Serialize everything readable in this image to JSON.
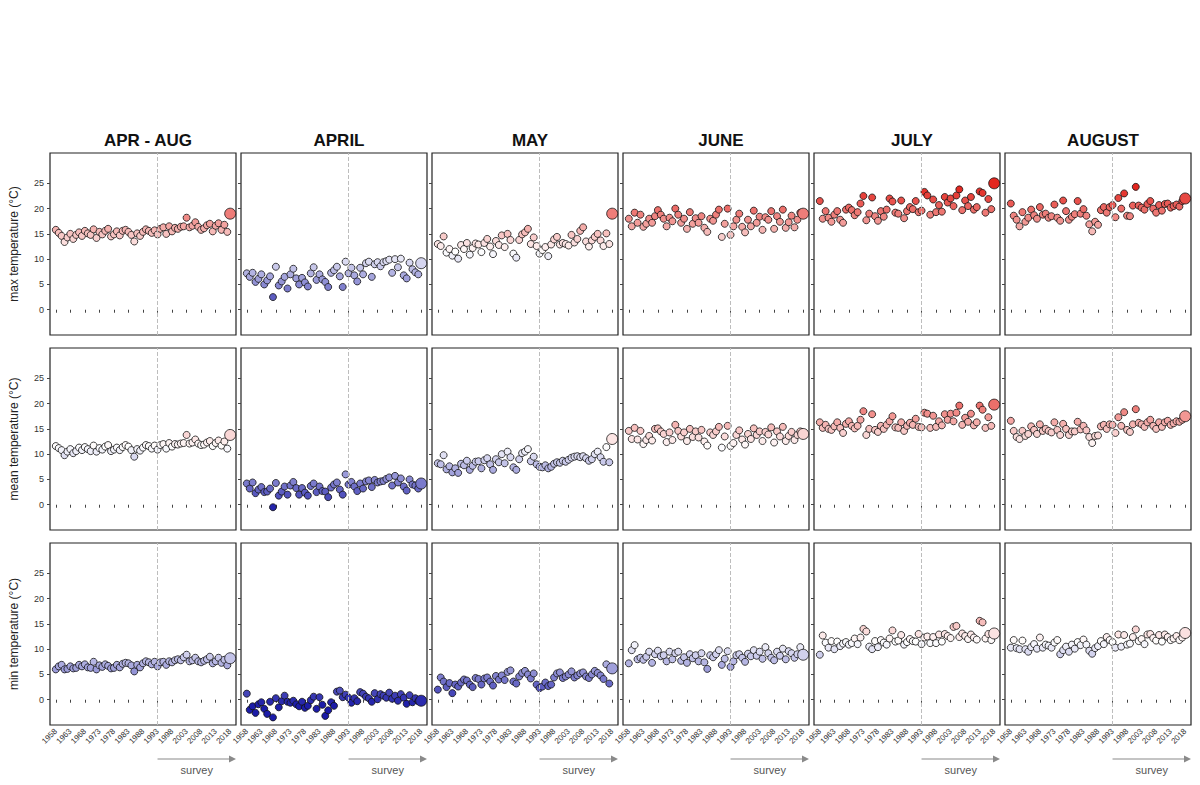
{
  "chart_data": {
    "type": "scatter",
    "marker": "circle",
    "columns": [
      "APR - AUG",
      "APRIL",
      "MAY",
      "JUNE",
      "JULY",
      "AUGUST"
    ],
    "rows": [
      "max temperature (°C)",
      "mean temperature (°C)",
      "min temperature (°C)"
    ],
    "x": [
      1958,
      1959,
      1960,
      1961,
      1962,
      1963,
      1964,
      1965,
      1966,
      1967,
      1968,
      1969,
      1970,
      1971,
      1972,
      1973,
      1974,
      1975,
      1976,
      1977,
      1978,
      1979,
      1980,
      1981,
      1982,
      1983,
      1984,
      1985,
      1986,
      1987,
      1988,
      1989,
      1990,
      1991,
      1992,
      1993,
      1994,
      1995,
      1996,
      1997,
      1998,
      1999,
      2000,
      2001,
      2002,
      2003,
      2004,
      2005,
      2006,
      2007,
      2008,
      2009,
      2010,
      2011,
      2012,
      2013,
      2014,
      2015,
      2016,
      2017,
      2018
    ],
    "xlim": [
      1956,
      2020
    ],
    "xticks": [
      1958,
      1963,
      1968,
      1973,
      1978,
      1983,
      1988,
      1993,
      1998,
      2003,
      2008,
      2013,
      2018
    ],
    "ylim": [
      -5,
      31
    ],
    "yticks": [
      0,
      5,
      10,
      15,
      20,
      25
    ],
    "survey": {
      "label": "survey",
      "start": 1993
    },
    "color_scale": {
      "range": [
        -1,
        24
      ],
      "colors": [
        "#1c1ca8",
        "#ffffff",
        "#e3261f"
      ]
    },
    "values": [
      [
        [
          15.8,
          15.2,
          14.6,
          13.4,
          14.3,
          15.0,
          14.0,
          14.8,
          15.3,
          14.6,
          15.6,
          15.1,
          14.8,
          15.9,
          14.2,
          15.4,
          14.9,
          15.6,
          16.0,
          14.5,
          14.9,
          15.5,
          14.7,
          15.6,
          15.8,
          15.4,
          14.8,
          13.5,
          15.1,
          14.6,
          15.4,
          15.9,
          15.6,
          15.2,
          15.7,
          14.9,
          16.0,
          16.3,
          15.0,
          16.5,
          15.5,
          16.2,
          16.0,
          16.4,
          16.5,
          18.2,
          16.3,
          16.6,
          17.3,
          16.4,
          15.8,
          16.1,
          16.7,
          17.0,
          15.5,
          16.6,
          17.1,
          15.8,
          16.8,
          15.4,
          19.0
        ],
        [
          7.2,
          6.5,
          7.3,
          5.5,
          6.1,
          7.0,
          5.0,
          5.8,
          6.6,
          2.5,
          8.5,
          4.8,
          5.6,
          6.5,
          4.2,
          7.0,
          8.1,
          6.2,
          5.0,
          6.3,
          5.4,
          4.6,
          7.2,
          8.4,
          5.9,
          7.0,
          6.0,
          5.5,
          4.5,
          7.3,
          7.8,
          8.5,
          6.6,
          4.5,
          9.5,
          7.2,
          8.3,
          6.8,
          5.6,
          8.3,
          7.0,
          9.2,
          9.5,
          6.5,
          9.0,
          9.4,
          8.6,
          9.4,
          9.6,
          9.9,
          7.3,
          10.0,
          8.4,
          10.1,
          6.8,
          6.2,
          9.3,
          8.0,
          7.4,
          7.0,
          9.2
        ],
        [
          13.0,
          12.6,
          14.5,
          11.3,
          12.0,
          10.7,
          11.5,
          10.1,
          12.8,
          12.0,
          13.2,
          10.9,
          12.2,
          13.1,
          12.9,
          11.4,
          13.2,
          14.0,
          12.5,
          11.0,
          13.6,
          12.8,
          14.7,
          12.4,
          15.0,
          13.8,
          11.1,
          10.3,
          13.8,
          14.9,
          15.3,
          16.0,
          13.0,
          14.3,
          12.6,
          11.1,
          11.8,
          12.4,
          10.6,
          12.9,
          13.9,
          14.4,
          12.9,
          13.2,
          13.0,
          12.7,
          14.8,
          13.3,
          14.0,
          15.6,
          16.3,
          13.5,
          12.5,
          13.7,
          14.4,
          15.0,
          13.7,
          12.6,
          15.1,
          13.0,
          19.0
        ],
        [
          18.0,
          16.5,
          19.2,
          17.2,
          18.8,
          16.4,
          17.0,
          18.0,
          17.2,
          18.5,
          19.7,
          18.8,
          18.0,
          16.5,
          18.2,
          17.5,
          20.0,
          18.8,
          17.2,
          18.0,
          16.0,
          19.3,
          17.0,
          18.1,
          17.2,
          18.5,
          16.2,
          15.4,
          18.0,
          17.6,
          18.8,
          19.8,
          14.4,
          17.0,
          20.0,
          14.8,
          16.5,
          17.8,
          19.0,
          16.4,
          15.3,
          17.8,
          16.5,
          19.6,
          17.2,
          18.4,
          15.8,
          18.3,
          17.8,
          19.5,
          16.0,
          18.5,
          17.4,
          19.8,
          16.2,
          17.3,
          18.6,
          16.3,
          17.8,
          19.2,
          19.0
        ],
        [
          21.5,
          18.0,
          19.5,
          18.2,
          17.4,
          18.8,
          19.5,
          17.8,
          17.2,
          19.8,
          20.2,
          19.7,
          18.7,
          19.3,
          21.0,
          22.5,
          17.7,
          19.0,
          22.2,
          18.5,
          17.6,
          19.5,
          18.4,
          19.8,
          22.0,
          21.4,
          19.2,
          19.0,
          21.6,
          18.1,
          19.5,
          20.3,
          19.9,
          21.5,
          19.3,
          19.6,
          23.3,
          22.6,
          18.8,
          21.8,
          19.3,
          20.7,
          19.4,
          22.3,
          21.2,
          22.0,
          20.5,
          22.6,
          23.8,
          19.7,
          21.6,
          20.5,
          22.3,
          19.8,
          20.3,
          23.4,
          23.1,
          19.2,
          21.9,
          19.9,
          25.0
        ],
        [
          21.0,
          18.6,
          17.8,
          16.5,
          19.3,
          17.4,
          18.2,
          19.8,
          18.7,
          18.0,
          20.3,
          18.8,
          19.0,
          18.2,
          18.5,
          20.8,
          18.2,
          17.6,
          21.6,
          19.5,
          17.8,
          18.4,
          18.9,
          21.5,
          19.0,
          19.9,
          18.6,
          16.9,
          15.5,
          17.4,
          16.8,
          19.7,
          20.3,
          19.2,
          20.3,
          20.7,
          18.3,
          22.1,
          20.0,
          23.0,
          18.6,
          18.5,
          20.6,
          24.3,
          20.6,
          20.2,
          19.8,
          20.9,
          21.5,
          20.0,
          19.2,
          20.7,
          19.6,
          20.9,
          21.0,
          20.2,
          20.5,
          20.8,
          20.4,
          21.5,
          22.0
        ]
      ],
      [
        [
          11.6,
          11.2,
          10.8,
          9.8,
          10.5,
          11.0,
          10.2,
          10.6,
          11.3,
          10.8,
          11.4,
          11.0,
          10.6,
          11.7,
          10.5,
          11.2,
          10.9,
          11.5,
          11.8,
          10.6,
          10.9,
          11.3,
          10.8,
          11.4,
          11.8,
          11.5,
          10.8,
          9.5,
          11.0,
          10.7,
          11.3,
          11.8,
          11.6,
          11.1,
          11.7,
          10.9,
          11.8,
          12.0,
          11.1,
          12.2,
          11.5,
          12.0,
          11.9,
          12.1,
          12.2,
          13.8,
          12.1,
          12.3,
          12.9,
          12.1,
          11.8,
          11.9,
          12.3,
          12.6,
          11.6,
          12.2,
          12.7,
          11.7,
          12.5,
          11.1,
          13.8
        ],
        [
          4.2,
          3.2,
          4.4,
          2.3,
          3.0,
          3.5,
          2.5,
          2.6,
          3.2,
          -0.5,
          4.3,
          1.8,
          2.6,
          3.6,
          2.0,
          3.8,
          4.5,
          3.3,
          2.0,
          3.3,
          2.4,
          1.8,
          3.7,
          4.2,
          2.5,
          3.6,
          2.7,
          2.6,
          1.5,
          3.4,
          4.0,
          4.4,
          3.0,
          2.0,
          6.0,
          4.0,
          4.5,
          3.6,
          2.7,
          4.2,
          3.2,
          4.6,
          4.8,
          3.5,
          4.9,
          4.4,
          4.6,
          4.7,
          5.1,
          5.4,
          3.8,
          5.7,
          4.4,
          5.2,
          3.6,
          2.8,
          5.0,
          4.0,
          3.8,
          3.2,
          4.2
        ],
        [
          8.2,
          8.0,
          9.8,
          7.0,
          7.6,
          6.4,
          7.2,
          6.3,
          8.1,
          7.8,
          8.7,
          6.9,
          7.7,
          8.5,
          8.6,
          7.2,
          8.8,
          9.2,
          8.0,
          6.9,
          9.0,
          8.4,
          10.0,
          8.2,
          10.5,
          9.4,
          7.4,
          6.9,
          9.0,
          10.2,
          10.5,
          11.0,
          8.6,
          9.5,
          8.0,
          7.5,
          7.4,
          7.8,
          7.2,
          7.5,
          8.1,
          8.4,
          8.3,
          8.7,
          8.5,
          8.9,
          9.3,
          9.5,
          9.6,
          9.4,
          9.6,
          9.2,
          8.7,
          9.0,
          10.0,
          10.5,
          9.4,
          8.5,
          11.4,
          8.4,
          13.0
        ],
        [
          14.6,
          13.0,
          15.2,
          12.9,
          14.6,
          12.0,
          12.8,
          13.6,
          12.7,
          15.0,
          15.1,
          14.5,
          14.0,
          12.4,
          14.3,
          12.8,
          15.8,
          14.6,
          13.5,
          14.3,
          12.6,
          15.0,
          13.4,
          14.5,
          13.3,
          14.8,
          12.5,
          11.7,
          14.3,
          13.8,
          14.5,
          15.4,
          11.3,
          13.5,
          15.6,
          11.6,
          12.2,
          13.8,
          14.7,
          12.9,
          11.9,
          14.0,
          13.0,
          15.1,
          13.8,
          14.5,
          12.6,
          14.4,
          13.9,
          15.3,
          12.3,
          14.5,
          13.5,
          15.4,
          12.6,
          13.6,
          14.4,
          12.8,
          13.8,
          14.5,
          14.0
        ],
        [
          16.3,
          15.2,
          15.8,
          15.0,
          14.8,
          15.5,
          16.3,
          15.2,
          14.2,
          16.0,
          16.5,
          15.6,
          15.1,
          15.6,
          16.8,
          18.5,
          13.8,
          15.0,
          17.9,
          14.8,
          14.4,
          15.6,
          15.0,
          15.8,
          16.5,
          17.5,
          15.3,
          15.2,
          16.3,
          14.6,
          15.6,
          16.2,
          15.8,
          17.0,
          15.4,
          15.3,
          18.2,
          18.0,
          15.2,
          17.6,
          15.4,
          16.5,
          15.7,
          17.9,
          16.8,
          18.0,
          16.5,
          18.2,
          19.6,
          15.8,
          17.2,
          16.4,
          18.0,
          15.7,
          16.3,
          19.6,
          18.8,
          15.2,
          17.3,
          15.6,
          19.8
        ],
        [
          16.6,
          14.6,
          13.4,
          13.0,
          14.6,
          13.6,
          14.0,
          15.5,
          14.8,
          14.0,
          15.9,
          14.6,
          15.0,
          14.6,
          14.3,
          16.3,
          14.8,
          13.8,
          16.0,
          15.0,
          13.8,
          14.5,
          14.5,
          16.4,
          14.9,
          15.6,
          14.7,
          13.4,
          12.2,
          13.6,
          13.7,
          15.5,
          15.8,
          15.0,
          15.9,
          15.8,
          14.2,
          17.3,
          15.6,
          18.3,
          14.8,
          14.4,
          15.9,
          18.9,
          16.2,
          15.9,
          15.4,
          16.3,
          16.8,
          15.6,
          15.0,
          16.3,
          15.4,
          16.3,
          16.6,
          15.8,
          16.1,
          16.5,
          16.4,
          16.8,
          17.5
        ]
      ],
      [
        [
          6.0,
          6.6,
          6.9,
          6.0,
          6.1,
          6.6,
          6.2,
          6.3,
          6.9,
          6.6,
          7.0,
          6.4,
          6.3,
          7.5,
          6.0,
          6.8,
          6.5,
          7.0,
          6.7,
          6.2,
          6.3,
          6.9,
          6.4,
          7.1,
          7.3,
          7.2,
          6.8,
          5.6,
          6.9,
          6.4,
          7.2,
          7.6,
          7.4,
          7.0,
          7.5,
          6.6,
          7.4,
          7.5,
          6.9,
          7.6,
          7.4,
          7.8,
          8.0,
          7.8,
          8.4,
          8.9,
          7.6,
          7.8,
          8.3,
          7.6,
          7.4,
          7.7,
          8.0,
          8.5,
          7.2,
          7.6,
          8.3,
          7.3,
          7.9,
          6.8,
          8.2
        ],
        [
          1.2,
          -2.0,
          -1.3,
          -2.6,
          -0.9,
          -0.5,
          -1.8,
          -2.8,
          -0.4,
          -3.5,
          0.3,
          -1.5,
          -0.3,
          0.8,
          -0.4,
          -0.6,
          -0.2,
          -0.9,
          -1.3,
          -0.4,
          -1.6,
          -1.2,
          -0.1,
          0.6,
          -1.8,
          0.5,
          -1.0,
          -3.2,
          -2.1,
          -0.5,
          -1.2,
          1.6,
          1.8,
          0.5,
          1.0,
          0.4,
          -0.6,
          0.3,
          -0.3,
          1.5,
          1.2,
          0.6,
          0.3,
          -0.4,
          1.3,
          0.1,
          1.1,
          0.8,
          0.4,
          1.4,
          0.2,
          0.8,
          -0.2,
          1.1,
          0.4,
          -0.8,
          0.9,
          -0.5,
          0.3,
          -0.3,
          -0.2
        ],
        [
          2.0,
          4.4,
          3.6,
          2.5,
          3.3,
          1.3,
          3.0,
          2.6,
          3.4,
          4.0,
          3.8,
          3.0,
          2.5,
          4.3,
          4.1,
          3.0,
          4.2,
          4.4,
          3.6,
          2.8,
          4.7,
          4.0,
          4.8,
          3.9,
          5.5,
          5.8,
          3.6,
          3.2,
          4.6,
          5.3,
          5.7,
          5.0,
          4.2,
          5.2,
          3.0,
          2.3,
          2.6,
          3.4,
          2.7,
          3.0,
          4.4,
          5.2,
          5.4,
          4.3,
          4.6,
          5.0,
          5.6,
          4.4,
          4.8,
          5.2,
          5.4,
          4.6,
          4.3,
          5.0,
          5.7,
          5.3,
          4.8,
          4.1,
          7.0,
          3.2,
          6.2
        ],
        [
          7.2,
          9.8,
          10.8,
          8.0,
          8.3,
          7.9,
          8.5,
          9.5,
          7.3,
          9.0,
          9.7,
          8.6,
          8.8,
          7.6,
          9.5,
          8.0,
          9.2,
          9.5,
          7.7,
          8.4,
          7.3,
          9.0,
          8.2,
          8.8,
          7.6,
          9.2,
          7.4,
          6.1,
          8.8,
          8.4,
          9.0,
          9.8,
          6.9,
          8.1,
          9.6,
          6.5,
          7.6,
          8.8,
          9.0,
          8.3,
          7.5,
          9.1,
          8.6,
          9.8,
          8.7,
          9.5,
          8.1,
          10.4,
          9.2,
          8.3,
          7.8,
          9.5,
          8.7,
          10.1,
          8.0,
          9.6,
          9.2,
          8.3,
          9.0,
          10.4,
          8.9
        ],
        [
          8.9,
          12.7,
          11.3,
          10.3,
          11.6,
          10.0,
          11.5,
          10.6,
          11.1,
          11.4,
          10.9,
          11.2,
          12.1,
          11.0,
          12.3,
          14.0,
          13.5,
          10.5,
          10.0,
          11.6,
          10.4,
          11.8,
          11.3,
          10.9,
          12.1,
          13.7,
          11.5,
          11.7,
          12.8,
          10.9,
          11.4,
          12.0,
          11.6,
          11.5,
          13.0,
          11.0,
          12.3,
          12.5,
          11.2,
          12.4,
          11.2,
          12.9,
          11.5,
          13.0,
          12.6,
          12.2,
          14.4,
          14.6,
          12.4,
          13.1,
          12.6,
          12.0,
          12.9,
          12.3,
          11.9,
          15.6,
          15.3,
          12.1,
          13.0,
          11.8,
          13.1
        ],
        [
          10.3,
          11.8,
          10.2,
          10.0,
          11.7,
          10.0,
          9.5,
          10.4,
          11.0,
          10.1,
          12.3,
          10.3,
          10.9,
          10.7,
          10.3,
          11.3,
          11.8,
          9.0,
          9.8,
          10.5,
          9.5,
          10.9,
          10.1,
          11.4,
          10.8,
          11.9,
          10.9,
          9.7,
          9.1,
          10.2,
          10.6,
          11.6,
          11.0,
          12.4,
          11.8,
          11.4,
          10.3,
          12.9,
          10.5,
          12.8,
          10.9,
          11.1,
          12.4,
          13.9,
          11.6,
          12.0,
          11.0,
          12.9,
          13.0,
          12.2,
          11.7,
          12.8,
          11.5,
          12.9,
          12.4,
          11.8,
          12.1,
          12.6,
          11.8,
          12.3,
          13.2
        ]
      ]
    ]
  }
}
